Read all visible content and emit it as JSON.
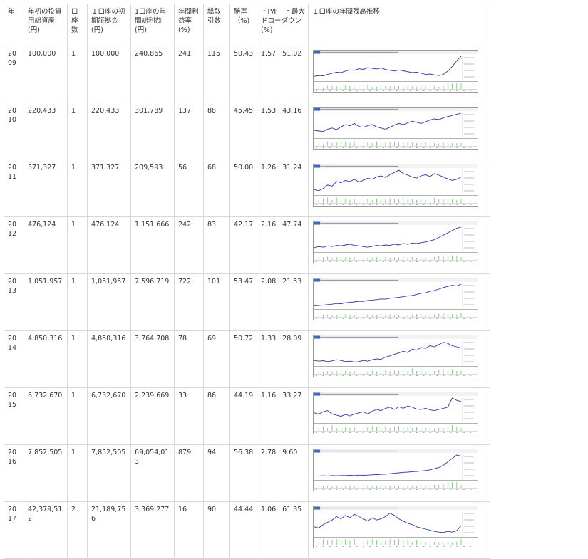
{
  "table": {
    "headers": [
      "年",
      "年初の投資用総資産(円)",
      "口座数",
      "１口座の初期証拠金(円)",
      "1口座の年間総利益(円)",
      "年間利益率(%)",
      "総取引数",
      "勝率（%)",
      "・P/F　・最大ドローダウン(%)",
      "１口座の年間残高推移"
    ],
    "rows": [
      {
        "year": "2009",
        "assets": "100,000",
        "accounts": "1",
        "margin": "100,000",
        "profit": "240,865",
        "rate": "241",
        "trades": "115",
        "win": "50.43",
        "pf": "1.57",
        "dd": "51.02"
      },
      {
        "year": "2010",
        "assets": "220,433",
        "accounts": "1",
        "margin": "220,433",
        "profit": "301,789",
        "rate": "137",
        "trades": "88",
        "win": "45.45",
        "pf": "1.53",
        "dd": "43.16"
      },
      {
        "year": "2011",
        "assets": "371,327",
        "accounts": "1",
        "margin": "371,327",
        "profit": "209,593",
        "rate": "56",
        "trades": "68",
        "win": "50.00",
        "pf": "1.26",
        "dd": "31.24"
      },
      {
        "year": "2012",
        "assets": "476,124",
        "accounts": "1",
        "margin": "476,124",
        "profit": "1,151,666",
        "rate": "242",
        "trades": "83",
        "win": "42.17",
        "pf": "2.16",
        "dd": "47.74"
      },
      {
        "year": "2013",
        "assets": "1,051,957",
        "accounts": "1",
        "margin": "1,051,957",
        "profit": "7,596,719",
        "rate": "722",
        "trades": "101",
        "win": "53.47",
        "pf": "2.08",
        "dd": "21.53"
      },
      {
        "year": "2014",
        "assets": "4,850,316",
        "accounts": "1",
        "margin": "4,850,316",
        "profit": "3,764,708",
        "rate": "78",
        "trades": "69",
        "win": "50.72",
        "pf": "1.33",
        "dd": "28.09"
      },
      {
        "year": "2015",
        "assets": "6,732,670",
        "accounts": "1",
        "margin": "6,732,670",
        "profit": "2,239,669",
        "rate": "33",
        "trades": "86",
        "win": "44.19",
        "pf": "1.16",
        "dd": "33.27"
      },
      {
        "year": "2016",
        "assets": "7,852,505",
        "accounts": "1",
        "margin": "7,852,505",
        "profit": "69,054,013",
        "rate": "879",
        "trades": "94",
        "win": "56.38",
        "pf": "2.78",
        "dd": "9.60"
      },
      {
        "year": "2017",
        "assets": "42,379,512",
        "accounts": "2",
        "margin": "21,189,756",
        "profit": "3,369,277",
        "rate": "16",
        "trades": "90",
        "win": "44.44",
        "pf": "1.06",
        "dd": "61.35"
      }
    ]
  },
  "chart_data": {
    "type": "line",
    "series_by_year": {
      "2009": [
        0.12,
        0.15,
        0.14,
        0.2,
        0.25,
        0.3,
        0.28,
        0.35,
        0.4,
        0.38,
        0.45,
        0.42,
        0.5,
        0.47,
        0.44,
        0.48,
        0.42,
        0.38,
        0.35,
        0.4,
        0.36,
        0.32,
        0.28,
        0.3,
        0.25,
        0.2,
        0.22,
        0.18,
        0.15,
        0.2,
        0.35,
        0.55,
        0.8,
        1.0
      ],
      "2010": [
        0.25,
        0.22,
        0.2,
        0.3,
        0.35,
        0.28,
        0.4,
        0.5,
        0.45,
        0.55,
        0.42,
        0.38,
        0.45,
        0.5,
        0.4,
        0.35,
        0.3,
        0.38,
        0.48,
        0.55,
        0.5,
        0.58,
        0.65,
        0.6,
        0.55,
        0.62,
        0.7,
        0.75,
        0.72,
        0.8,
        0.85,
        0.9,
        0.95,
        1.0
      ],
      "2011": [
        0.15,
        0.1,
        0.2,
        0.35,
        0.3,
        0.5,
        0.45,
        0.55,
        0.5,
        0.6,
        0.48,
        0.55,
        0.65,
        0.6,
        0.7,
        0.75,
        0.68,
        0.8,
        0.9,
        1.0,
        0.85,
        0.78,
        0.7,
        0.65,
        0.75,
        0.8,
        0.72,
        0.85,
        0.78,
        0.7,
        0.62,
        0.55,
        0.6,
        0.7
      ],
      "2012": [
        0.1,
        0.15,
        0.12,
        0.18,
        0.15,
        0.2,
        0.18,
        0.22,
        0.25,
        0.2,
        0.18,
        0.15,
        0.12,
        0.16,
        0.2,
        0.18,
        0.22,
        0.2,
        0.25,
        0.22,
        0.28,
        0.25,
        0.3,
        0.28,
        0.32,
        0.35,
        0.4,
        0.45,
        0.55,
        0.65,
        0.75,
        0.85,
        0.95,
        1.0
      ],
      "2013": [
        0.05,
        0.06,
        0.08,
        0.1,
        0.12,
        0.15,
        0.14,
        0.18,
        0.2,
        0.22,
        0.25,
        0.24,
        0.28,
        0.3,
        0.32,
        0.35,
        0.34,
        0.38,
        0.4,
        0.42,
        0.45,
        0.48,
        0.5,
        0.55,
        0.6,
        0.62,
        0.68,
        0.72,
        0.78,
        0.85,
        0.9,
        0.95,
        0.92,
        1.0
      ],
      "2014": [
        0.15,
        0.12,
        0.14,
        0.1,
        0.13,
        0.18,
        0.15,
        0.1,
        0.12,
        0.08,
        0.1,
        0.15,
        0.12,
        0.18,
        0.22,
        0.2,
        0.3,
        0.35,
        0.42,
        0.48,
        0.55,
        0.5,
        0.65,
        0.6,
        0.72,
        0.68,
        0.8,
        0.75,
        0.85,
        0.95,
        0.9,
        0.8,
        0.75,
        0.7
      ],
      "2015": [
        0.35,
        0.3,
        0.4,
        0.45,
        0.3,
        0.25,
        0.2,
        0.28,
        0.22,
        0.3,
        0.35,
        0.4,
        0.3,
        0.42,
        0.5,
        0.45,
        0.55,
        0.6,
        0.5,
        0.62,
        0.55,
        0.65,
        0.6,
        0.52,
        0.5,
        0.55,
        0.48,
        0.45,
        0.5,
        0.55,
        0.6,
        1.0,
        0.9,
        0.85
      ],
      "2016": [
        0.08,
        0.08,
        0.09,
        0.08,
        0.1,
        0.09,
        0.1,
        0.1,
        0.11,
        0.1,
        0.12,
        0.11,
        0.12,
        0.13,
        0.14,
        0.15,
        0.16,
        0.18,
        0.2,
        0.22,
        0.24,
        0.25,
        0.27,
        0.28,
        0.3,
        0.32,
        0.35,
        0.4,
        0.45,
        0.55,
        0.7,
        0.85,
        1.0,
        0.95
      ],
      "2017": [
        0.35,
        0.3,
        0.45,
        0.55,
        0.65,
        0.8,
        0.7,
        0.85,
        0.75,
        0.9,
        0.8,
        0.7,
        0.6,
        0.75,
        0.65,
        0.7,
        0.8,
        0.95,
        0.85,
        0.7,
        0.6,
        0.5,
        0.45,
        0.35,
        0.3,
        0.25,
        0.2,
        0.15,
        0.12,
        0.1,
        0.15,
        0.12,
        0.18,
        0.4
      ]
    },
    "line_color": "#3333aa",
    "volume_color": "#66cc66"
  }
}
